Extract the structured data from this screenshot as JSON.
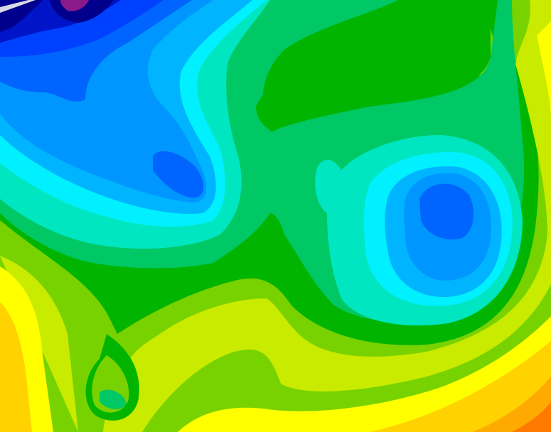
{
  "map": {
    "type": "filled-contour",
    "palette": {
      "purple": "#8a1a8a",
      "navy": "#00008c",
      "dark_blue": "#0014c8",
      "blue": "#0040ff",
      "mid_blue": "#0064ff",
      "light_blue": "#0096ff",
      "sky": "#00b4ff",
      "cyan": "#00f0ff",
      "aquamarine": "#00e6c0",
      "light_green": "#00c864",
      "green": "#00b400",
      "yellow_green": "#78d200",
      "lime": "#c8eb00",
      "yellow": "#ffff00",
      "gold": "#ffd200",
      "orange": "#ffaa00",
      "dark_orange": "#ff7800"
    }
  }
}
